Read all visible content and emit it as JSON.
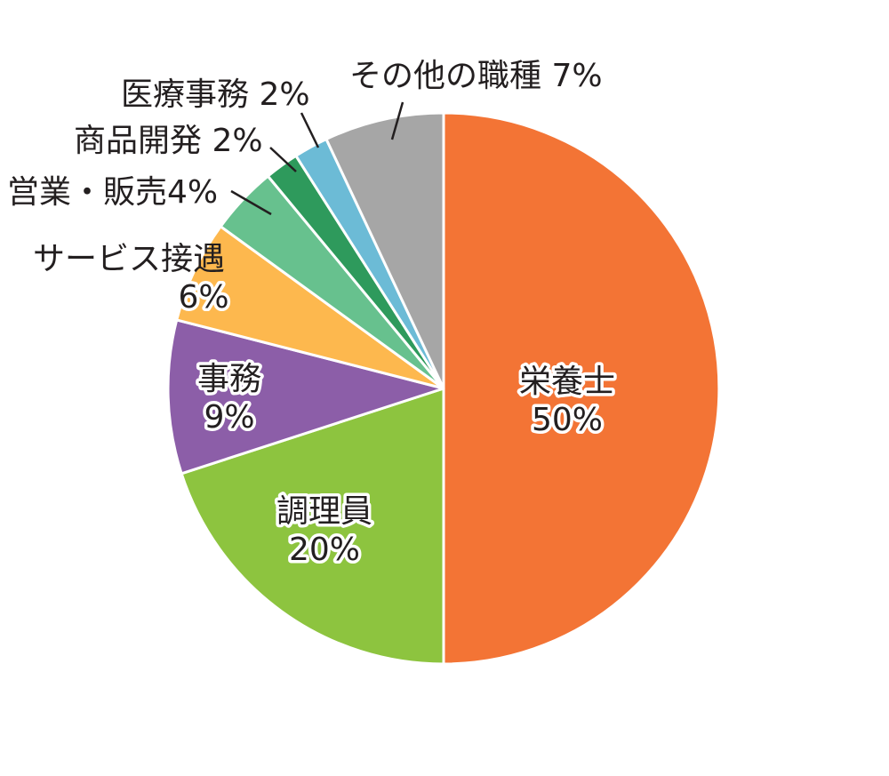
{
  "chart_data": {
    "type": "pie",
    "start_angle_deg": 0,
    "direction": "clockwise",
    "slices": [
      {
        "name": "栄養士",
        "value": 50,
        "value_label": "50%",
        "color": "#f37435"
      },
      {
        "name": "調理員",
        "value": 20,
        "value_label": "20%",
        "color": "#8dc43f"
      },
      {
        "name": "事務",
        "value": 9,
        "value_label": "9%",
        "color": "#8c5ea8"
      },
      {
        "name": "サービス接遇",
        "value": 6,
        "value_label": "6%",
        "color": "#fdb84e"
      },
      {
        "name": "営業・販売",
        "value": 4,
        "value_label": "4%",
        "color": "#67c18e"
      },
      {
        "name": "商品開発",
        "value": 2,
        "value_label": "2%",
        "color": "#2e9a5c"
      },
      {
        "name": "医療事務",
        "value": 2,
        "value_label": "2%",
        "color": "#6cbbd6"
      },
      {
        "name": "その他の職種",
        "value": 7,
        "value_label": "7%",
        "color": "#a6a6a6"
      }
    ]
  }
}
